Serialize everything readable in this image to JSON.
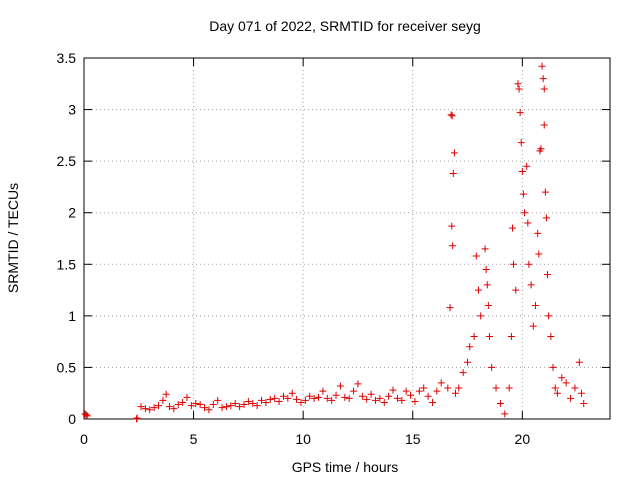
{
  "chart_data": {
    "type": "scatter",
    "title": "Day 071 of 2022, SRMTID for receiver seyg",
    "xlabel": "GPS time / hours",
    "ylabel": "SRMTID / TECUs",
    "xlim": [
      0,
      24
    ],
    "ylim": [
      0,
      3.5
    ],
    "xticks": [
      "0",
      "5",
      "10",
      "15",
      "20"
    ],
    "yticks": [
      "0",
      "0.5",
      "1",
      "1.5",
      "2",
      "2.5",
      "3",
      "3.5"
    ],
    "grid": true,
    "marker": "+",
    "color": "#e00000",
    "series": [
      {
        "name": "SRMTID",
        "points": [
          [
            0.05,
            0.05
          ],
          [
            0.1,
            0.04
          ],
          [
            0.15,
            0.03
          ],
          [
            2.4,
            0.0
          ],
          [
            2.42,
            0.01
          ],
          [
            2.6,
            0.12
          ],
          [
            2.8,
            0.1
          ],
          [
            3.0,
            0.09
          ],
          [
            3.2,
            0.11
          ],
          [
            3.4,
            0.13
          ],
          [
            3.6,
            0.18
          ],
          [
            3.75,
            0.24
          ],
          [
            3.9,
            0.12
          ],
          [
            4.1,
            0.1
          ],
          [
            4.3,
            0.14
          ],
          [
            4.5,
            0.16
          ],
          [
            4.7,
            0.21
          ],
          [
            4.9,
            0.13
          ],
          [
            5.1,
            0.15
          ],
          [
            5.3,
            0.14
          ],
          [
            5.5,
            0.11
          ],
          [
            5.7,
            0.09
          ],
          [
            5.9,
            0.14
          ],
          [
            6.1,
            0.18
          ],
          [
            6.3,
            0.11
          ],
          [
            6.5,
            0.12
          ],
          [
            6.7,
            0.13
          ],
          [
            6.9,
            0.15
          ],
          [
            7.1,
            0.12
          ],
          [
            7.3,
            0.14
          ],
          [
            7.5,
            0.17
          ],
          [
            7.7,
            0.15
          ],
          [
            7.9,
            0.13
          ],
          [
            8.1,
            0.18
          ],
          [
            8.3,
            0.16
          ],
          [
            8.5,
            0.19
          ],
          [
            8.7,
            0.2
          ],
          [
            8.9,
            0.17
          ],
          [
            9.1,
            0.22
          ],
          [
            9.3,
            0.2
          ],
          [
            9.5,
            0.25
          ],
          [
            9.7,
            0.19
          ],
          [
            9.9,
            0.16
          ],
          [
            10.1,
            0.18
          ],
          [
            10.3,
            0.22
          ],
          [
            10.5,
            0.2
          ],
          [
            10.7,
            0.21
          ],
          [
            10.9,
            0.27
          ],
          [
            11.1,
            0.2
          ],
          [
            11.3,
            0.18
          ],
          [
            11.5,
            0.23
          ],
          [
            11.7,
            0.32
          ],
          [
            11.9,
            0.21
          ],
          [
            12.1,
            0.2
          ],
          [
            12.3,
            0.27
          ],
          [
            12.5,
            0.34
          ],
          [
            12.7,
            0.22
          ],
          [
            12.9,
            0.19
          ],
          [
            13.1,
            0.24
          ],
          [
            13.3,
            0.18
          ],
          [
            13.5,
            0.2
          ],
          [
            13.7,
            0.16
          ],
          [
            13.9,
            0.22
          ],
          [
            14.1,
            0.28
          ],
          [
            14.3,
            0.2
          ],
          [
            14.5,
            0.18
          ],
          [
            14.7,
            0.27
          ],
          [
            14.9,
            0.23
          ],
          [
            15.1,
            0.17
          ],
          [
            15.3,
            0.27
          ],
          [
            15.5,
            0.3
          ],
          [
            15.7,
            0.22
          ],
          [
            15.9,
            0.16
          ],
          [
            16.1,
            0.27
          ],
          [
            16.3,
            0.35
          ],
          [
            16.6,
            0.3
          ],
          [
            16.7,
            1.08
          ],
          [
            16.75,
            2.95
          ],
          [
            16.8,
            2.94
          ],
          [
            16.85,
            2.38
          ],
          [
            16.9,
            2.58
          ],
          [
            16.78,
            1.87
          ],
          [
            16.82,
            1.68
          ],
          [
            16.95,
            0.25
          ],
          [
            17.1,
            0.3
          ],
          [
            17.3,
            0.45
          ],
          [
            17.5,
            0.55
          ],
          [
            17.6,
            0.7
          ],
          [
            17.8,
            0.8
          ],
          [
            17.9,
            1.58
          ],
          [
            18.0,
            1.25
          ],
          [
            18.1,
            1.0
          ],
          [
            18.3,
            1.65
          ],
          [
            18.35,
            1.45
          ],
          [
            18.4,
            1.3
          ],
          [
            18.45,
            1.1
          ],
          [
            18.5,
            0.8
          ],
          [
            18.6,
            0.5
          ],
          [
            18.8,
            0.3
          ],
          [
            19.0,
            0.15
          ],
          [
            19.2,
            0.05
          ],
          [
            19.4,
            0.3
          ],
          [
            19.5,
            0.8
          ],
          [
            19.55,
            1.85
          ],
          [
            19.6,
            1.5
          ],
          [
            19.7,
            1.25
          ],
          [
            19.8,
            3.25
          ],
          [
            19.85,
            3.2
          ],
          [
            19.9,
            2.97
          ],
          [
            19.95,
            2.68
          ],
          [
            20.0,
            2.4
          ],
          [
            20.05,
            2.18
          ],
          [
            20.1,
            2.0
          ],
          [
            20.2,
            2.45
          ],
          [
            20.25,
            1.9
          ],
          [
            20.3,
            1.5
          ],
          [
            20.4,
            1.3
          ],
          [
            20.5,
            0.9
          ],
          [
            20.6,
            1.1
          ],
          [
            20.7,
            1.8
          ],
          [
            20.75,
            1.6
          ],
          [
            20.8,
            2.6
          ],
          [
            20.85,
            2.62
          ],
          [
            20.9,
            3.42
          ],
          [
            20.95,
            3.3
          ],
          [
            21.0,
            3.2
          ],
          [
            21.0,
            2.85
          ],
          [
            21.05,
            2.2
          ],
          [
            21.1,
            1.95
          ],
          [
            21.15,
            1.4
          ],
          [
            21.2,
            1.0
          ],
          [
            21.3,
            0.8
          ],
          [
            21.4,
            0.5
          ],
          [
            21.5,
            0.3
          ],
          [
            21.6,
            0.25
          ],
          [
            21.8,
            0.4
          ],
          [
            22.0,
            0.35
          ],
          [
            22.2,
            0.2
          ],
          [
            22.4,
            0.3
          ],
          [
            22.6,
            0.55
          ],
          [
            22.7,
            0.25
          ],
          [
            22.8,
            0.15
          ]
        ]
      }
    ]
  }
}
